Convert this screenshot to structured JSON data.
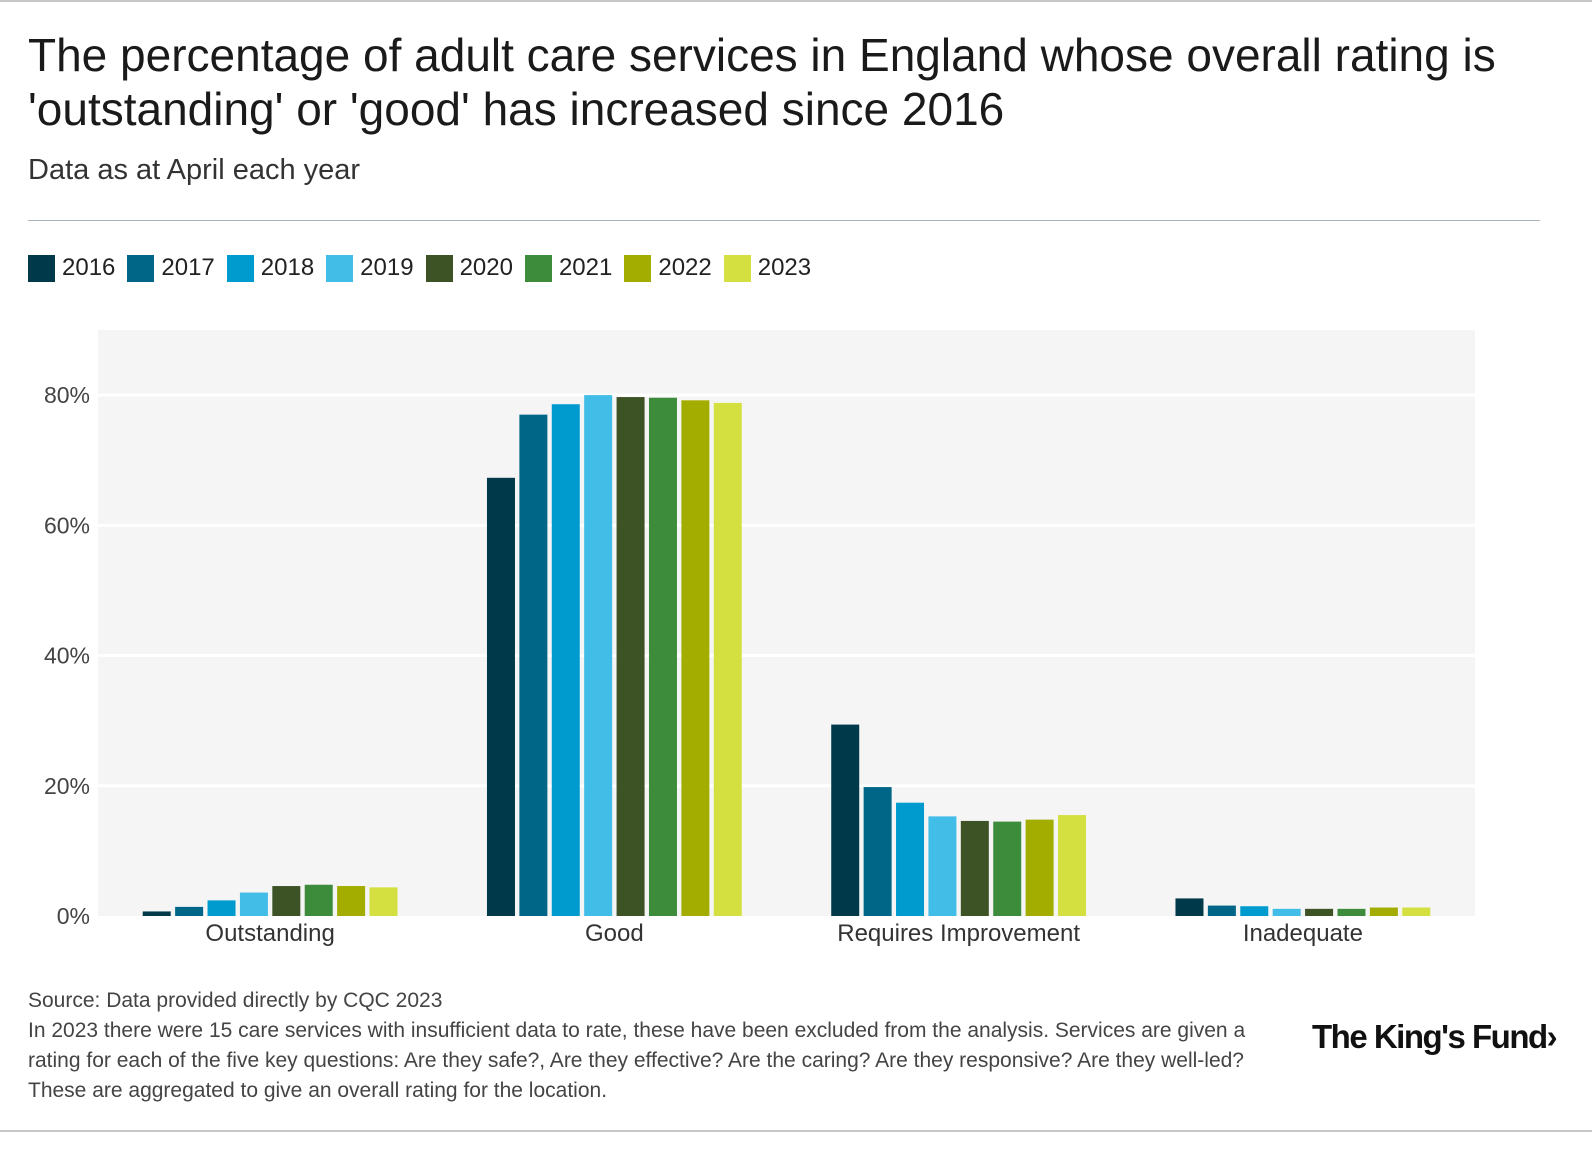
{
  "title": "The percentage of adult care services in England whose overall rating is 'outstanding' or 'good' has increased since 2016",
  "subtitle": "Data as at April each year",
  "source": "Source: Data provided directly by CQC 2023",
  "footnote": "In 2023 there were 15 care services with insufficient data to rate, these have been excluded from the analysis. Services are given a rating for each of the five key questions: Are they safe?, Are they effective? Are the caring? Are they responsive? Are they well-led? These are aggregated to give an overall rating for the location.",
  "logo": "The King's Fund›",
  "chart_data": {
    "type": "bar",
    "title": "The percentage of adult care services in England whose overall rating is 'outstanding' or 'good' has increased since 2016",
    "xlabel": "",
    "ylabel": "",
    "ylim": [
      0,
      90
    ],
    "yticks": [
      0,
      20,
      40,
      60,
      80
    ],
    "ytick_labels": [
      "0%",
      "20%",
      "40%",
      "60%",
      "80%"
    ],
    "grid": true,
    "legend_position": "top-left",
    "categories": [
      "Outstanding",
      "Good",
      "Requires Improvement",
      "Inadequate"
    ],
    "series": [
      {
        "name": "2016",
        "color": "#003a4a",
        "values": [
          0.7,
          67.3,
          29.4,
          2.7
        ]
      },
      {
        "name": "2017",
        "color": "#006688",
        "values": [
          1.4,
          77.0,
          19.8,
          1.6
        ]
      },
      {
        "name": "2018",
        "color": "#009bce",
        "values": [
          2.4,
          78.6,
          17.4,
          1.5
        ]
      },
      {
        "name": "2019",
        "color": "#42bde8",
        "values": [
          3.6,
          80.0,
          15.3,
          1.1
        ]
      },
      {
        "name": "2020",
        "color": "#3d5225",
        "values": [
          4.6,
          79.7,
          14.6,
          1.1
        ]
      },
      {
        "name": "2021",
        "color": "#3d8c3c",
        "values": [
          4.8,
          79.6,
          14.5,
          1.1
        ]
      },
      {
        "name": "2022",
        "color": "#a2ad00",
        "values": [
          4.6,
          79.2,
          14.8,
          1.3
        ]
      },
      {
        "name": "2023",
        "color": "#d3e03f",
        "values": [
          4.4,
          78.8,
          15.5,
          1.3
        ]
      }
    ]
  }
}
